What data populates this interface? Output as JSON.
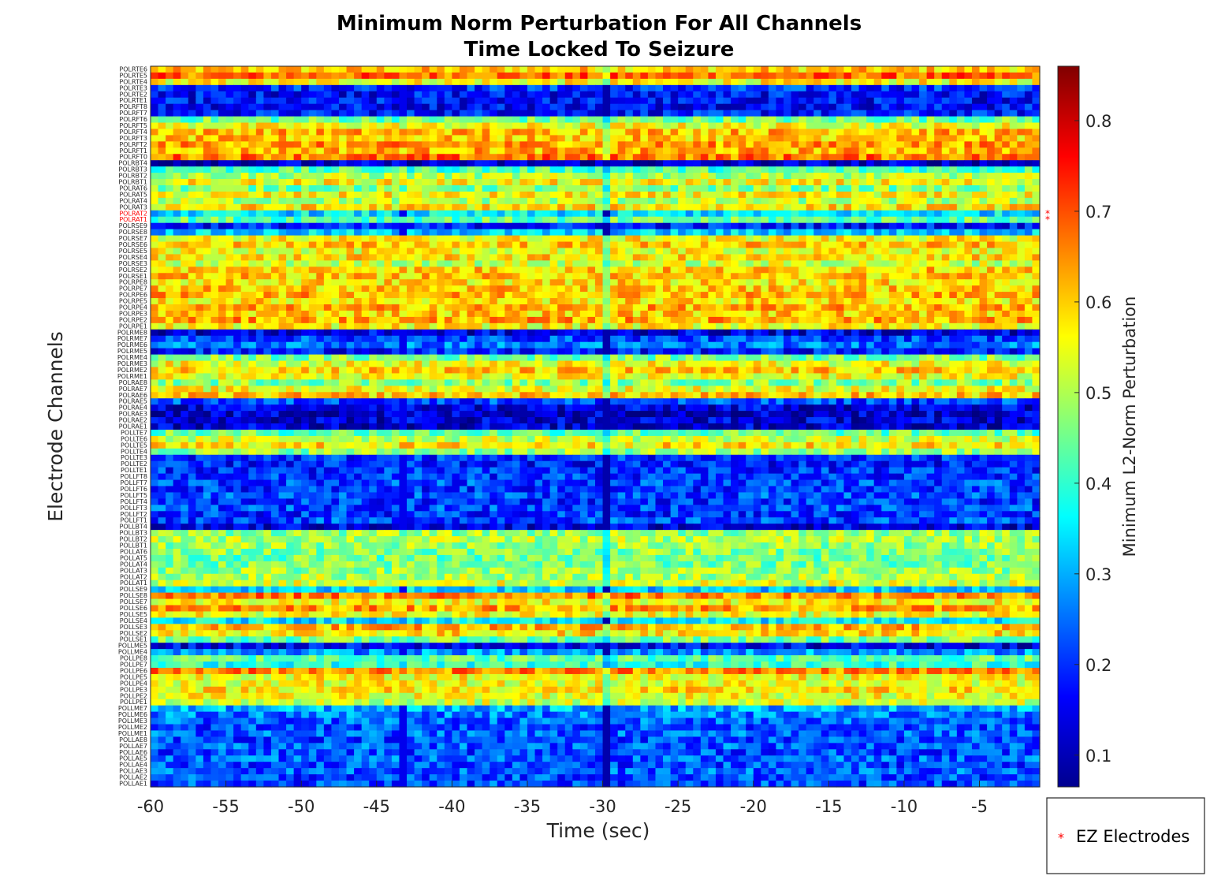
{
  "chart_data": {
    "type": "heatmap",
    "title": [
      "Minimum Norm Perturbation For All Channels",
      "Time Locked To Seizure"
    ],
    "xlabel": "Time (sec)",
    "ylabel": "Electrode Channels",
    "xlim": [
      -60,
      -1
    ],
    "x_ticks": [
      -60,
      -55,
      -50,
      -45,
      -40,
      -35,
      -30,
      -25,
      -20,
      -15,
      -10,
      -5
    ],
    "colorbar": {
      "label": "Minimum L2-Norm Perturbation",
      "range": [
        0.065,
        0.86
      ],
      "ticks": [
        0.1,
        0.2,
        0.3,
        0.4,
        0.5,
        0.6,
        0.7,
        0.8
      ],
      "colormap": "jet"
    },
    "legend": {
      "entries": [
        "EZ Electrodes"
      ],
      "marker": "*",
      "color": "#ff0000",
      "placement": "bottom-right-outside"
    },
    "ez_channels": [
      "POLRAT2",
      "POLRAT1"
    ],
    "channels": [
      {
        "name": "POLRTE6",
        "level": 0.6
      },
      {
        "name": "POLRTE5",
        "level": 0.68
      },
      {
        "name": "POLRTE4",
        "level": 0.56
      },
      {
        "name": "POLRTE3",
        "level": 0.2
      },
      {
        "name": "POLRTE2",
        "level": 0.17
      },
      {
        "name": "POLRTE1",
        "level": 0.17
      },
      {
        "name": "POLRFT8",
        "level": 0.17
      },
      {
        "name": "POLRFT7",
        "level": 0.18
      },
      {
        "name": "POLRFT6",
        "level": 0.45
      },
      {
        "name": "POLRFT5",
        "level": 0.55
      },
      {
        "name": "POLRFT4",
        "level": 0.62
      },
      {
        "name": "POLRFT3",
        "level": 0.6
      },
      {
        "name": "POLRFT2",
        "level": 0.64
      },
      {
        "name": "POLRFT1",
        "level": 0.62
      },
      {
        "name": "POLRFT0",
        "level": 0.67
      },
      {
        "name": "POLRBT4",
        "level": 0.12
      },
      {
        "name": "POLRBT3",
        "level": 0.42
      },
      {
        "name": "POLRBT2",
        "level": 0.5
      },
      {
        "name": "POLRBT1",
        "level": 0.56
      },
      {
        "name": "POLRAT6",
        "level": 0.46
      },
      {
        "name": "POLRAT5",
        "level": 0.56
      },
      {
        "name": "POLRAT4",
        "level": 0.5
      },
      {
        "name": "POLRAT3",
        "level": 0.58
      },
      {
        "name": "POLRAT2",
        "level": 0.34
      },
      {
        "name": "POLRAT1",
        "level": 0.44
      },
      {
        "name": "POLRSE9",
        "level": 0.18
      },
      {
        "name": "POLRSE8",
        "level": 0.32
      },
      {
        "name": "POLRSE7",
        "level": 0.56
      },
      {
        "name": "POLRSE6",
        "level": 0.6
      },
      {
        "name": "POLRSE5",
        "level": 0.55
      },
      {
        "name": "POLRSE4",
        "level": 0.58
      },
      {
        "name": "POLRSE3",
        "level": 0.52
      },
      {
        "name": "POLRSE2",
        "level": 0.6
      },
      {
        "name": "POLRSE1",
        "level": 0.6
      },
      {
        "name": "POLRPE8",
        "level": 0.58
      },
      {
        "name": "POLRPE7",
        "level": 0.6
      },
      {
        "name": "POLRPE6",
        "level": 0.62
      },
      {
        "name": "POLRPE5",
        "level": 0.58
      },
      {
        "name": "POLRPE4",
        "level": 0.62
      },
      {
        "name": "POLRPE3",
        "level": 0.6
      },
      {
        "name": "POLRPE2",
        "level": 0.63
      },
      {
        "name": "POLRPE1",
        "level": 0.56
      },
      {
        "name": "POLRME8",
        "level": 0.14
      },
      {
        "name": "POLRME7",
        "level": 0.22
      },
      {
        "name": "POLRME6",
        "level": 0.26
      },
      {
        "name": "POLRME5",
        "level": 0.18
      },
      {
        "name": "POLRME4",
        "level": 0.46
      },
      {
        "name": "POLRME3",
        "level": 0.55
      },
      {
        "name": "POLRME2",
        "level": 0.6
      },
      {
        "name": "POLRME1",
        "level": 0.55
      },
      {
        "name": "POLRAE8",
        "level": 0.47
      },
      {
        "name": "POLRAE7",
        "level": 0.55
      },
      {
        "name": "POLRAE6",
        "level": 0.6
      },
      {
        "name": "POLRAE5",
        "level": 0.22
      },
      {
        "name": "POLRAE4",
        "level": 0.14
      },
      {
        "name": "POLRAE3",
        "level": 0.13
      },
      {
        "name": "POLRAE2",
        "level": 0.14
      },
      {
        "name": "POLRAE1",
        "level": 0.13
      },
      {
        "name": "POLLTE7",
        "level": 0.44
      },
      {
        "name": "POLLTE6",
        "level": 0.52
      },
      {
        "name": "POLLTE5",
        "level": 0.58
      },
      {
        "name": "POLLTE4",
        "level": 0.48
      },
      {
        "name": "POLLTE3",
        "level": 0.2
      },
      {
        "name": "POLLTE2",
        "level": 0.18
      },
      {
        "name": "POLLTE1",
        "level": 0.2
      },
      {
        "name": "POLLFT8",
        "level": 0.2
      },
      {
        "name": "POLLFT7",
        "level": 0.22
      },
      {
        "name": "POLLFT6",
        "level": 0.2
      },
      {
        "name": "POLLFT5",
        "level": 0.22
      },
      {
        "name": "POLLFT4",
        "level": 0.2
      },
      {
        "name": "POLLFT3",
        "level": 0.22
      },
      {
        "name": "POLLFT2",
        "level": 0.2
      },
      {
        "name": "POLLFT1",
        "level": 0.22
      },
      {
        "name": "POLLBT4",
        "level": 0.14
      },
      {
        "name": "POLLBT3",
        "level": 0.48
      },
      {
        "name": "POLLBT2",
        "level": 0.5
      },
      {
        "name": "POLLBT1",
        "level": 0.48
      },
      {
        "name": "POLLAT6",
        "level": 0.47
      },
      {
        "name": "POLLAT5",
        "level": 0.45
      },
      {
        "name": "POLLAT4",
        "level": 0.46
      },
      {
        "name": "POLLAT3",
        "level": 0.48
      },
      {
        "name": "POLLAT2",
        "level": 0.5
      },
      {
        "name": "POLLAT1",
        "level": 0.53
      },
      {
        "name": "POLLSE9",
        "level": 0.32
      },
      {
        "name": "POLLSE8",
        "level": 0.66
      },
      {
        "name": "POLLSE7",
        "level": 0.56
      },
      {
        "name": "POLLSE6",
        "level": 0.64
      },
      {
        "name": "POLLSE5",
        "level": 0.55
      },
      {
        "name": "POLLSE4",
        "level": 0.35
      },
      {
        "name": "POLLSE3",
        "level": 0.62
      },
      {
        "name": "POLLSE2",
        "level": 0.58
      },
      {
        "name": "POLLSE1",
        "level": 0.45
      },
      {
        "name": "POLLME5",
        "level": 0.15
      },
      {
        "name": "POLLME4",
        "level": 0.28
      },
      {
        "name": "POLLPE8",
        "level": 0.44
      },
      {
        "name": "POLLPE7",
        "level": 0.4
      },
      {
        "name": "POLLPE6",
        "level": 0.66
      },
      {
        "name": "POLLPE5",
        "level": 0.56
      },
      {
        "name": "POLLPE4",
        "level": 0.55
      },
      {
        "name": "POLLPE3",
        "level": 0.58
      },
      {
        "name": "POLLPE2",
        "level": 0.55
      },
      {
        "name": "POLLPE1",
        "level": 0.52
      },
      {
        "name": "POLLME7",
        "level": 0.3
      },
      {
        "name": "POLLME6",
        "level": 0.26
      },
      {
        "name": "POLLME3",
        "level": 0.24
      },
      {
        "name": "POLLME2",
        "level": 0.22
      },
      {
        "name": "POLLME1",
        "level": 0.24
      },
      {
        "name": "POLLAE8",
        "level": 0.22
      },
      {
        "name": "POLLAE7",
        "level": 0.24
      },
      {
        "name": "POLLAE6",
        "level": 0.22
      },
      {
        "name": "POLLAE5",
        "level": 0.24
      },
      {
        "name": "POLLAE4",
        "level": 0.22
      },
      {
        "name": "POLLAE3",
        "level": 0.24
      },
      {
        "name": "POLLAE2",
        "level": 0.22
      },
      {
        "name": "POLLAE1",
        "level": 0.22
      }
    ]
  }
}
